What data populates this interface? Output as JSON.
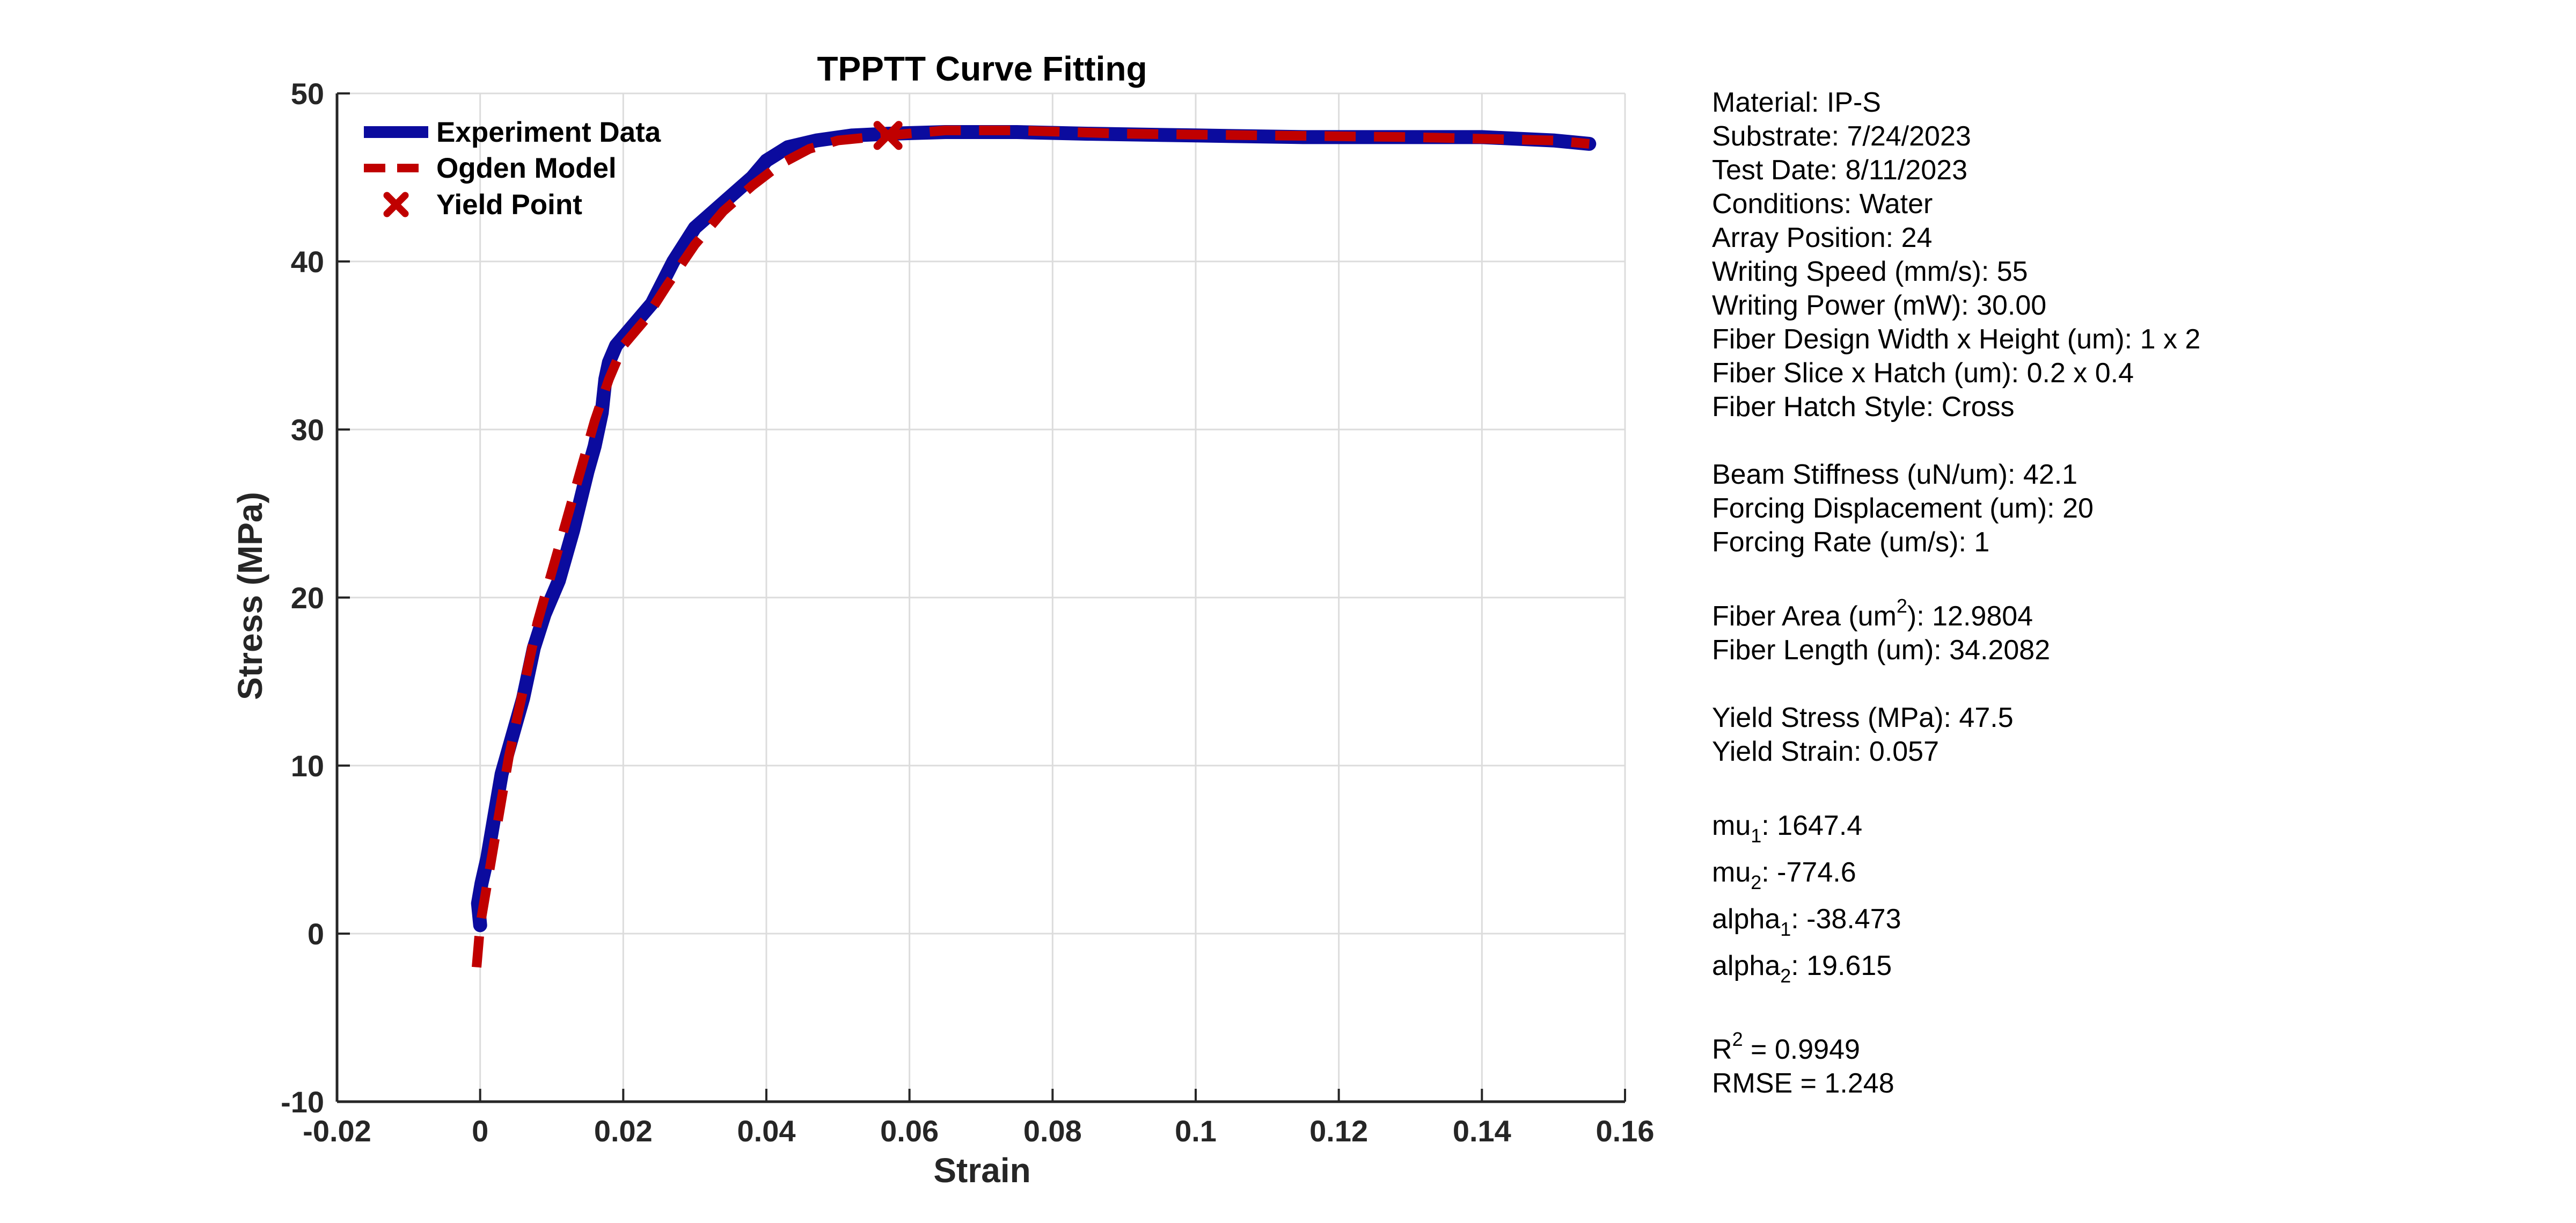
{
  "chart_data": {
    "type": "line",
    "title": "TPPTT Curve Fitting",
    "xlabel": "Strain",
    "ylabel": "Stress (MPa)",
    "xlim": [
      -0.02,
      0.16
    ],
    "ylim": [
      -10,
      50
    ],
    "xticks": [
      "-0.02",
      "0",
      "0.02",
      "0.04",
      "0.06",
      "0.08",
      "0.1",
      "0.12",
      "0.14",
      "0.16"
    ],
    "yticks": [
      "-10",
      "0",
      "10",
      "20",
      "30",
      "40",
      "50"
    ],
    "grid": true,
    "legend_position": "top-left",
    "series": [
      {
        "name": "Experiment Data",
        "color": "#0b0b9e",
        "style": "solid",
        "x": [
          0.0,
          -0.0003,
          0.0002,
          0.001,
          0.002,
          0.003,
          0.004,
          0.005,
          0.006,
          0.0075,
          0.009,
          0.011,
          0.013,
          0.015,
          0.016,
          0.017,
          0.0175,
          0.018,
          0.019,
          0.021,
          0.024,
          0.027,
          0.03,
          0.034,
          0.038,
          0.04,
          0.043,
          0.047,
          0.052,
          0.057,
          0.065,
          0.075,
          0.085,
          0.1,
          0.115,
          0.13,
          0.14,
          0.15,
          0.155
        ],
        "y": [
          0.5,
          1.8,
          3.0,
          4.5,
          7.0,
          9.5,
          11.0,
          12.5,
          14.0,
          17.0,
          19.0,
          21.0,
          24.0,
          27.5,
          29.0,
          31.0,
          33.0,
          34.0,
          35.0,
          36.0,
          37.5,
          40.0,
          42.0,
          43.5,
          45.0,
          46.0,
          46.8,
          47.2,
          47.5,
          47.6,
          47.7,
          47.7,
          47.6,
          47.5,
          47.4,
          47.4,
          47.4,
          47.2,
          47.0
        ]
      },
      {
        "name": "Ogden Model",
        "color": "#c00000",
        "style": "dashed",
        "x": [
          -0.0005,
          0.0,
          0.002,
          0.004,
          0.006,
          0.008,
          0.01,
          0.012,
          0.014,
          0.016,
          0.018,
          0.02,
          0.023,
          0.026,
          0.03,
          0.034,
          0.038,
          0.042,
          0.046,
          0.05,
          0.057,
          0.065,
          0.075,
          0.09,
          0.11,
          0.13,
          0.15,
          0.155
        ],
        "y": [
          -2.0,
          0.5,
          5.5,
          10.5,
          14.5,
          18.5,
          21.5,
          24.5,
          27.5,
          30.5,
          33.0,
          35.0,
          36.5,
          38.5,
          41.0,
          43.0,
          44.5,
          45.8,
          46.7,
          47.2,
          47.5,
          47.8,
          47.8,
          47.6,
          47.5,
          47.4,
          47.2,
          47.0
        ]
      }
    ],
    "yield_point": {
      "name": "Yield Point",
      "x": 0.057,
      "y": 47.5,
      "color": "#c00000",
      "marker": "x"
    }
  },
  "info": {
    "material": "Material: IP-S",
    "substrate": "Substrate: 7/24/2023",
    "test_date": "Test Date: 8/11/2023",
    "conditions": "Conditions: Water",
    "array_position": "Array Position: 24",
    "writing_speed": "Writing Speed (mm/s): 55",
    "writing_power": "Writing Power (mW): 30.00",
    "fiber_design": "Fiber Design Width x Height (um): 1 x 2",
    "fiber_slice": "Fiber Slice x Hatch (um): 0.2 x 0.4",
    "fiber_hatch_style": "Fiber Hatch Style: Cross",
    "beam_stiffness": "Beam Stiffness (uN/um): 42.1",
    "forcing_displacement": "Forcing Displacement (um): 20",
    "forcing_rate": "Forcing Rate (um/s): 1",
    "fiber_area_label": "Fiber Area (um",
    "fiber_area_sup": "2",
    "fiber_area_value": "): 12.9804",
    "fiber_length": "Fiber Length (um): 34.2082",
    "yield_stress": "Yield Stress (MPa): 47.5",
    "yield_strain": "Yield Strain: 0.057",
    "mu1_label": "mu",
    "mu1_sub": "1",
    "mu1_value": ": 1647.4",
    "mu2_label": "mu",
    "mu2_sub": "2",
    "mu2_value": ": -774.6",
    "alpha1_label": "alpha",
    "alpha1_sub": "1",
    "alpha1_value": ": -38.473",
    "alpha2_label": "alpha",
    "alpha2_sub": "2",
    "alpha2_value": ": 19.615",
    "r2_label": "R",
    "r2_sup": "2",
    "r2_value": " = 0.9949",
    "rmse": "RMSE = 1.248"
  }
}
